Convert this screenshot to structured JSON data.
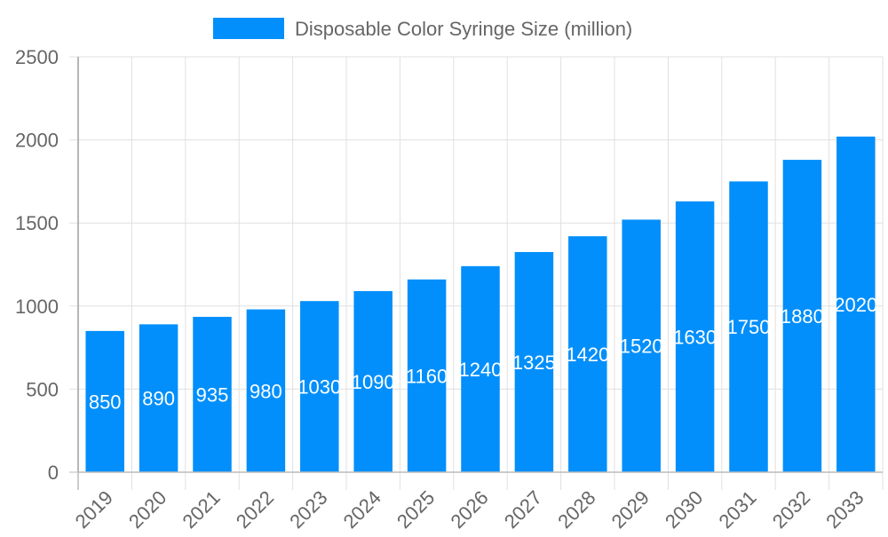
{
  "chart_data": {
    "type": "bar",
    "title": "",
    "xlabel": "",
    "ylabel": "",
    "categories": [
      "2019",
      "2020",
      "2021",
      "2022",
      "2023",
      "2024",
      "2025",
      "2026",
      "2027",
      "2028",
      "2029",
      "2030",
      "2031",
      "2032",
      "2033"
    ],
    "series": [
      {
        "name": "Disposable Color Syringe Size (million)",
        "values": [
          850,
          890,
          935,
          980,
          1030,
          1090,
          1160,
          1240,
          1325,
          1420,
          1520,
          1630,
          1750,
          1880,
          2020
        ],
        "color": "#028ffb"
      }
    ],
    "ylim": [
      0,
      2500
    ],
    "yticks": [
      0,
      500,
      1000,
      1500,
      2000,
      2500
    ],
    "grid": true,
    "legend": "top-center",
    "data_labels": true
  }
}
